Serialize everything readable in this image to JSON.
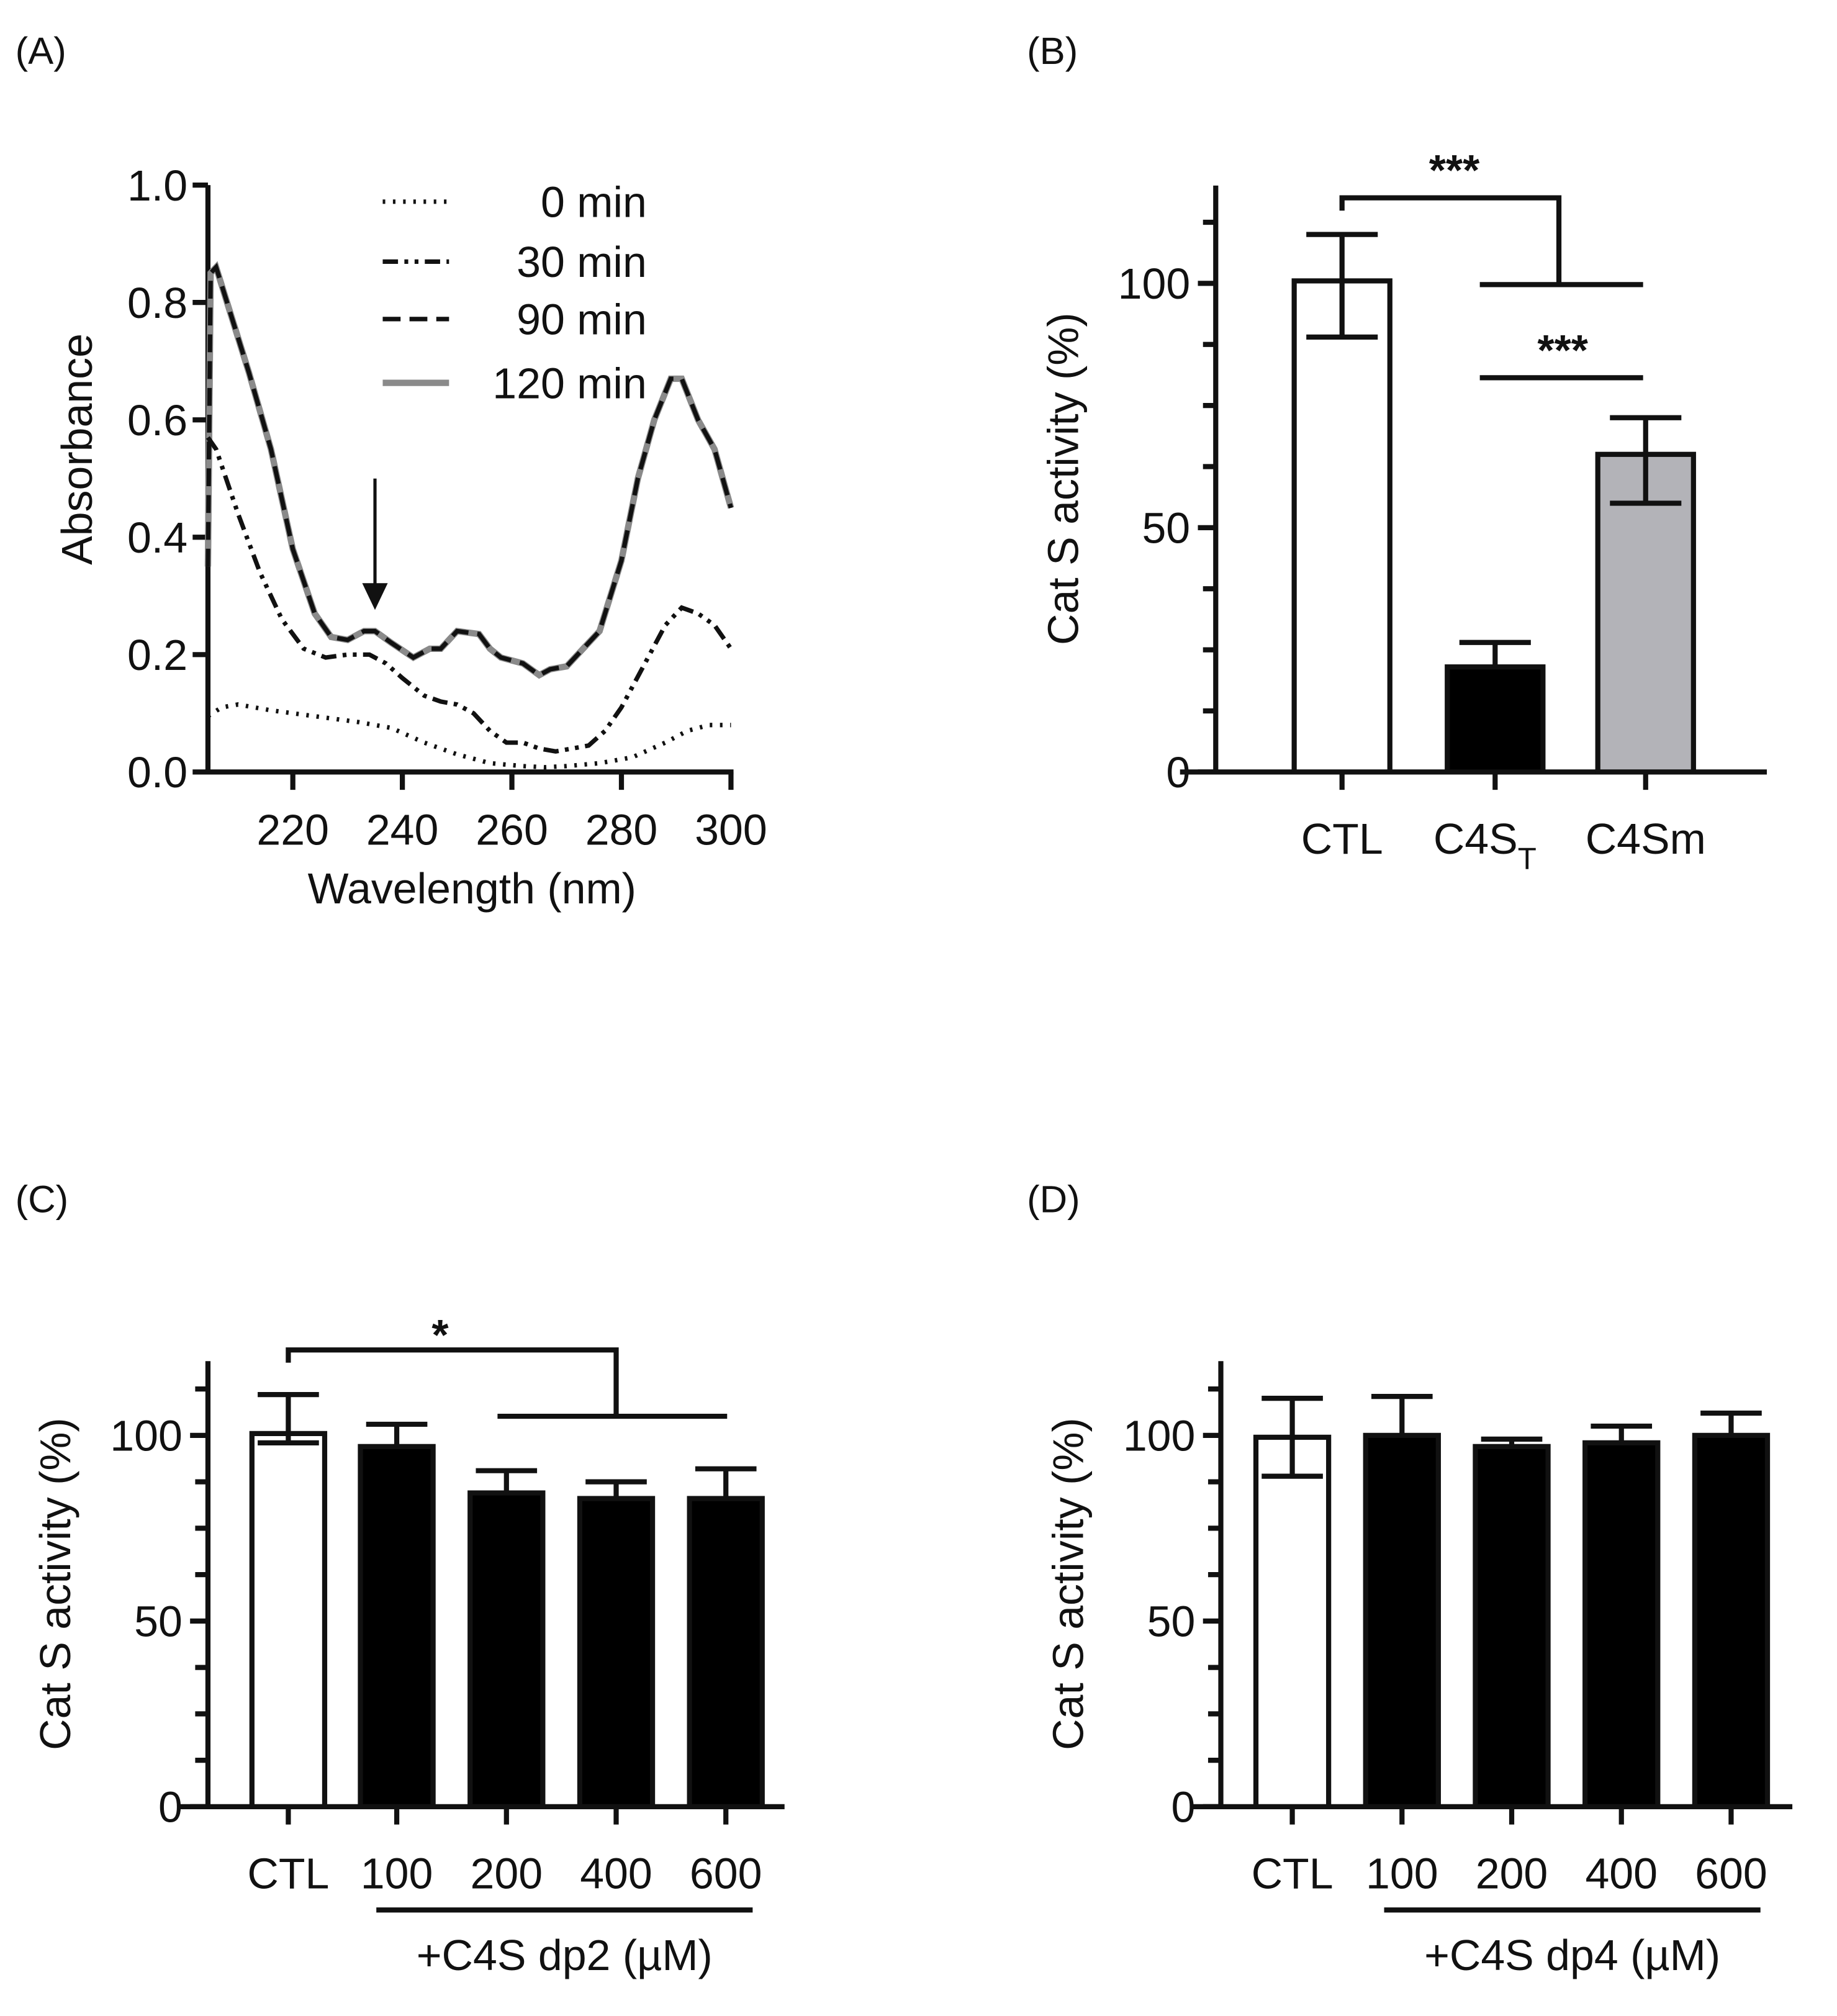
{
  "panel_labels": [
    "(A)",
    "(B)",
    "(C)",
    "(D)"
  ],
  "chart_data": [
    {
      "type": "line",
      "panel": "(A)",
      "xlabel": "Wavelength (nm)",
      "ylabel": "Absorbance",
      "xlim": [
        204.5,
        300
      ],
      "ylim": [
        0,
        1.0
      ],
      "xticks": [
        "220",
        "240",
        "260",
        "280",
        "300"
      ],
      "yticks": [
        "0.0",
        "0.2",
        "0.4",
        "0.6",
        "0.8",
        "1.0"
      ],
      "legend_position": "top-right",
      "annotation": "downward arrow at 235 nm",
      "arrow_x": 235,
      "series": [
        {
          "name": "0 min",
          "style": "dotted",
          "color": "#111111",
          "points": [
            [
              204.5,
              0.095
            ],
            [
              207,
              0.11
            ],
            [
              210,
              0.115
            ],
            [
              216,
              0.105
            ],
            [
              224,
              0.095
            ],
            [
              232,
              0.085
            ],
            [
              238,
              0.075
            ],
            [
              244,
              0.05
            ],
            [
              250,
              0.03
            ],
            [
              256,
              0.015
            ],
            [
              262,
              0.01
            ],
            [
              266,
              0.008
            ],
            [
              270,
              0.01
            ],
            [
              276,
              0.015
            ],
            [
              282,
              0.025
            ],
            [
              288,
              0.05
            ],
            [
              292,
              0.07
            ],
            [
              296,
              0.08
            ],
            [
              300,
              0.08
            ]
          ]
        },
        {
          "name": "30 min",
          "style": "dash-dot-dot",
          "color": "#111111",
          "points": [
            [
              204.5,
              0.57
            ],
            [
              206,
              0.55
            ],
            [
              210,
              0.44
            ],
            [
              214,
              0.34
            ],
            [
              218,
              0.26
            ],
            [
              222,
              0.21
            ],
            [
              226,
              0.195
            ],
            [
              230,
              0.2
            ],
            [
              234,
              0.2
            ],
            [
              237,
              0.185
            ],
            [
              240,
              0.16
            ],
            [
              244,
              0.13
            ],
            [
              247,
              0.12
            ],
            [
              250,
              0.115
            ],
            [
              253,
              0.1
            ],
            [
              256,
              0.07
            ],
            [
              259,
              0.05
            ],
            [
              262,
              0.05
            ],
            [
              265,
              0.04
            ],
            [
              268,
              0.035
            ],
            [
              271,
              0.04
            ],
            [
              274,
              0.045
            ],
            [
              277,
              0.07
            ],
            [
              280,
              0.11
            ],
            [
              284,
              0.18
            ],
            [
              288,
              0.25
            ],
            [
              291,
              0.28
            ],
            [
              294,
              0.27
            ],
            [
              297,
              0.25
            ],
            [
              300,
              0.21
            ]
          ]
        },
        {
          "name": "90 min",
          "style": "dashed",
          "color": "#111111",
          "points": [
            [
              204.5,
              0.35
            ],
            [
              205,
              0.85
            ],
            [
              206,
              0.86
            ],
            [
              208,
              0.8
            ],
            [
              212,
              0.68
            ],
            [
              216,
              0.55
            ],
            [
              220,
              0.38
            ],
            [
              224,
              0.27
            ],
            [
              227,
              0.23
            ],
            [
              230,
              0.225
            ],
            [
              233,
              0.24
            ],
            [
              235,
              0.24
            ],
            [
              238,
              0.22
            ],
            [
              242,
              0.195
            ],
            [
              245,
              0.21
            ],
            [
              247,
              0.21
            ],
            [
              250,
              0.24
            ],
            [
              254,
              0.235
            ],
            [
              256,
              0.21
            ],
            [
              258,
              0.195
            ],
            [
              262,
              0.185
            ],
            [
              265,
              0.165
            ],
            [
              267,
              0.175
            ],
            [
              270,
              0.18
            ],
            [
              272,
              0.2
            ],
            [
              276,
              0.24
            ],
            [
              280,
              0.36
            ],
            [
              283,
              0.5
            ],
            [
              286,
              0.6
            ],
            [
              289,
              0.67
            ],
            [
              291,
              0.67
            ],
            [
              294,
              0.6
            ],
            [
              297,
              0.55
            ],
            [
              300,
              0.45
            ]
          ]
        },
        {
          "name": "120 min",
          "style": "solid",
          "color": "#8a8a8a",
          "points": [
            [
              204.5,
              0.35
            ],
            [
              205,
              0.85
            ],
            [
              206,
              0.86
            ],
            [
              208,
              0.8
            ],
            [
              212,
              0.68
            ],
            [
              216,
              0.55
            ],
            [
              220,
              0.38
            ],
            [
              224,
              0.27
            ],
            [
              227,
              0.23
            ],
            [
              230,
              0.225
            ],
            [
              233,
              0.24
            ],
            [
              235,
              0.24
            ],
            [
              238,
              0.22
            ],
            [
              242,
              0.195
            ],
            [
              245,
              0.21
            ],
            [
              247,
              0.21
            ],
            [
              250,
              0.24
            ],
            [
              254,
              0.235
            ],
            [
              256,
              0.21
            ],
            [
              258,
              0.195
            ],
            [
              262,
              0.185
            ],
            [
              265,
              0.165
            ],
            [
              267,
              0.175
            ],
            [
              270,
              0.18
            ],
            [
              272,
              0.2
            ],
            [
              276,
              0.24
            ],
            [
              280,
              0.36
            ],
            [
              283,
              0.5
            ],
            [
              286,
              0.6
            ],
            [
              289,
              0.67
            ],
            [
              291,
              0.67
            ],
            [
              294,
              0.6
            ],
            [
              297,
              0.55
            ],
            [
              300,
              0.45
            ]
          ]
        }
      ]
    },
    {
      "type": "bar",
      "panel": "(B)",
      "ylabel": "Cat S activity (%)",
      "ylim": [
        0,
        120
      ],
      "yticks": [
        "0",
        "50",
        "100"
      ],
      "categories": [
        "CTL",
        "C4S",
        "C4Sm"
      ],
      "category_subscripts": [
        "",
        "T",
        ""
      ],
      "values": [
        100.5,
        21.5,
        65
      ],
      "err_low": [
        89,
        21.5,
        55
      ],
      "err_high": [
        110,
        26.5,
        72.5
      ],
      "colors": [
        "#ffffff",
        "#000000",
        "#b3b3b8"
      ],
      "significance": [
        {
          "label": "***",
          "from": "CTL",
          "to": [
            "C4S_T",
            "C4Sm"
          ]
        },
        {
          "label": "***",
          "from": "C4S_T",
          "to": [
            "C4Sm"
          ]
        }
      ]
    },
    {
      "type": "bar",
      "panel": "(C)",
      "ylabel": "Cat S activity (%)",
      "ylim": [
        0,
        120
      ],
      "yticks": [
        "0",
        "50",
        "100"
      ],
      "categories": [
        "CTL",
        "100",
        "200",
        "400",
        "600"
      ],
      "values": [
        100.5,
        97,
        84.5,
        83,
        83
      ],
      "err_low": [
        98,
        97,
        84.5,
        83,
        83
      ],
      "err_high": [
        111,
        103,
        90.5,
        87.5,
        91
      ],
      "colors": [
        "#ffffff",
        "#000000",
        "#000000",
        "#000000",
        "#000000"
      ],
      "group_label": "+C4S dp2 (µM)",
      "significance": [
        {
          "label": "*",
          "from": "CTL",
          "to": [
            "200",
            "400",
            "600"
          ]
        }
      ]
    },
    {
      "type": "bar",
      "panel": "(D)",
      "ylabel": "Cat S activity (%)",
      "ylim": [
        0,
        120
      ],
      "yticks": [
        "0",
        "50",
        "100"
      ],
      "categories": [
        "CTL",
        "100",
        "200",
        "400",
        "600"
      ],
      "values": [
        99.5,
        100,
        97,
        98,
        100
      ],
      "err_low": [
        89,
        100,
        97,
        98,
        100
      ],
      "err_high": [
        110,
        110.5,
        99,
        102.5,
        106
      ],
      "colors": [
        "#ffffff",
        "#000000",
        "#000000",
        "#000000",
        "#000000"
      ],
      "group_label": "+C4S dp4 (µM)",
      "significance": []
    }
  ]
}
